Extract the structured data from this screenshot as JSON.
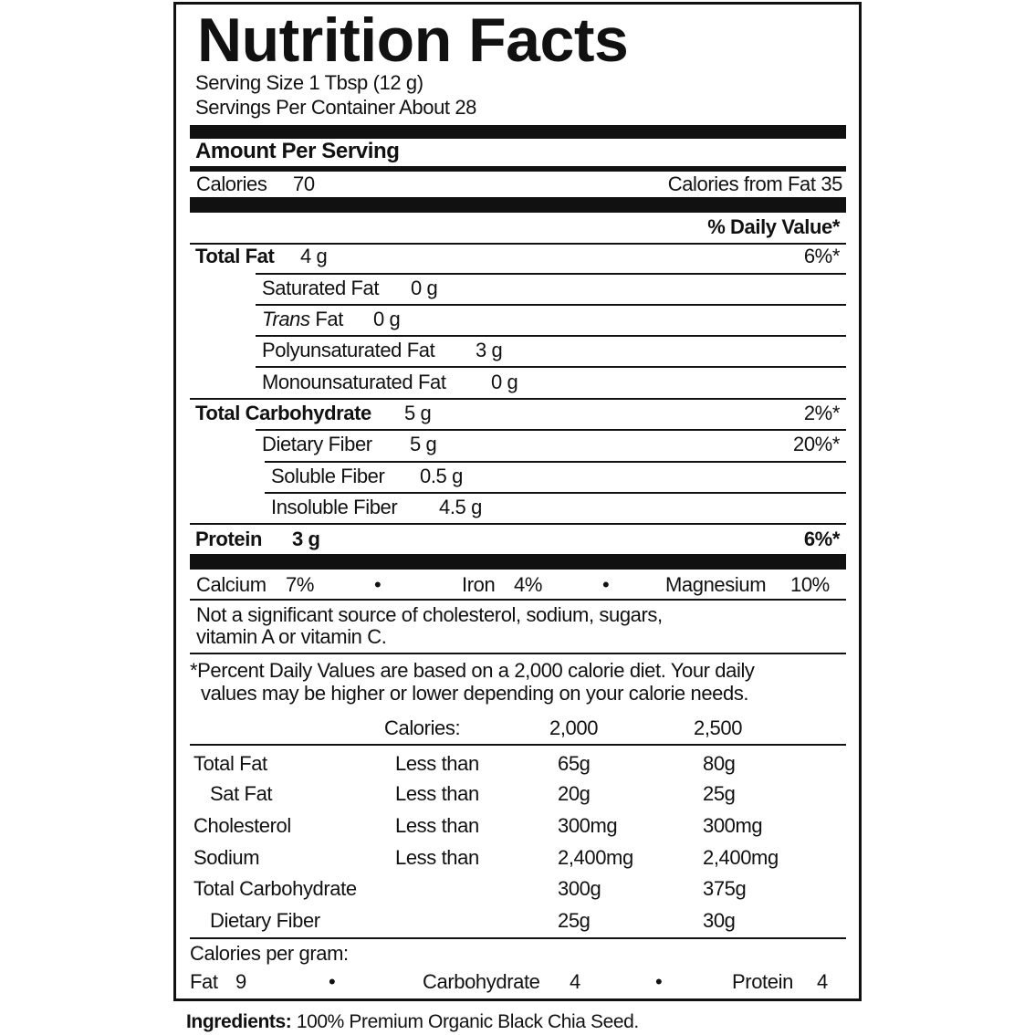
{
  "title": "Nutrition Facts",
  "serving_size": "Serving Size 1 Tbsp (12 g)",
  "servings_per_container": "Servings Per Container About 28",
  "amount_per_serving": "Amount Per Serving",
  "calories": {
    "label": "Calories",
    "value": "70",
    "from_fat": "Calories from Fat 35"
  },
  "daily_value_header": "% Daily Value*",
  "nutrients": [
    {
      "label": "Total Fat",
      "amount": "4 g",
      "dv": "6%*"
    },
    {
      "label": "Saturated Fat",
      "amount": "0 g"
    },
    {
      "label_italic": "Trans",
      "label": " Fat",
      "amount": "0 g"
    },
    {
      "label": "Polyunsaturated Fat",
      "amount": "3 g"
    },
    {
      "label": "Monounsaturated Fat",
      "amount": "0 g"
    },
    {
      "label": "Total Carbohydrate",
      "amount": "5 g",
      "dv": "2%*"
    },
    {
      "label": "Dietary Fiber",
      "amount": "5 g",
      "dv": "20%*"
    },
    {
      "label": "Soluble Fiber",
      "amount": "0.5 g"
    },
    {
      "label": "Insoluble Fiber",
      "amount": "4.5 g"
    },
    {
      "label": "Protein",
      "amount": "3 g",
      "dv": "6%*"
    }
  ],
  "minerals": [
    {
      "label": "Calcium",
      "value": "7%"
    },
    {
      "label": "Iron",
      "value": "4%"
    },
    {
      "label": "Magnesium",
      "value": "10%"
    }
  ],
  "bullet": "•",
  "not_significant": [
    "Not a significant source of cholesterol, sodium, sugars,",
    "vitamin A or vitamin C."
  ],
  "footnote": [
    "*Percent Daily Values are based on a 2,000 calorie diet. Your daily",
    "values may be higher or lower depending on your calorie needs."
  ],
  "reference_table": {
    "header": [
      "Calories:",
      "2,000",
      "2,500"
    ],
    "rows": [
      [
        "Total Fat",
        "Less than",
        "65g",
        "80g"
      ],
      [
        "Sat Fat",
        "Less than",
        "20g",
        "25g"
      ],
      [
        "Cholesterol",
        "Less than",
        "300mg",
        "300mg"
      ],
      [
        "Sodium",
        "Less than",
        "2,400mg",
        "2,400mg"
      ],
      [
        "Total Carbohydrate",
        "",
        "300g",
        "375g"
      ],
      [
        "Dietary Fiber",
        "",
        "25g",
        "30g"
      ]
    ]
  },
  "calories_per_gram": {
    "label": "Calories per gram:",
    "items": [
      {
        "label": "Fat",
        "value": "9"
      },
      {
        "label": "Carbohydrate",
        "value": "4"
      },
      {
        "label": "Protein",
        "value": "4"
      }
    ]
  },
  "ingredients": {
    "label": "Ingredients:",
    "text": " 100% Premium Organic Black Chia Seed."
  }
}
